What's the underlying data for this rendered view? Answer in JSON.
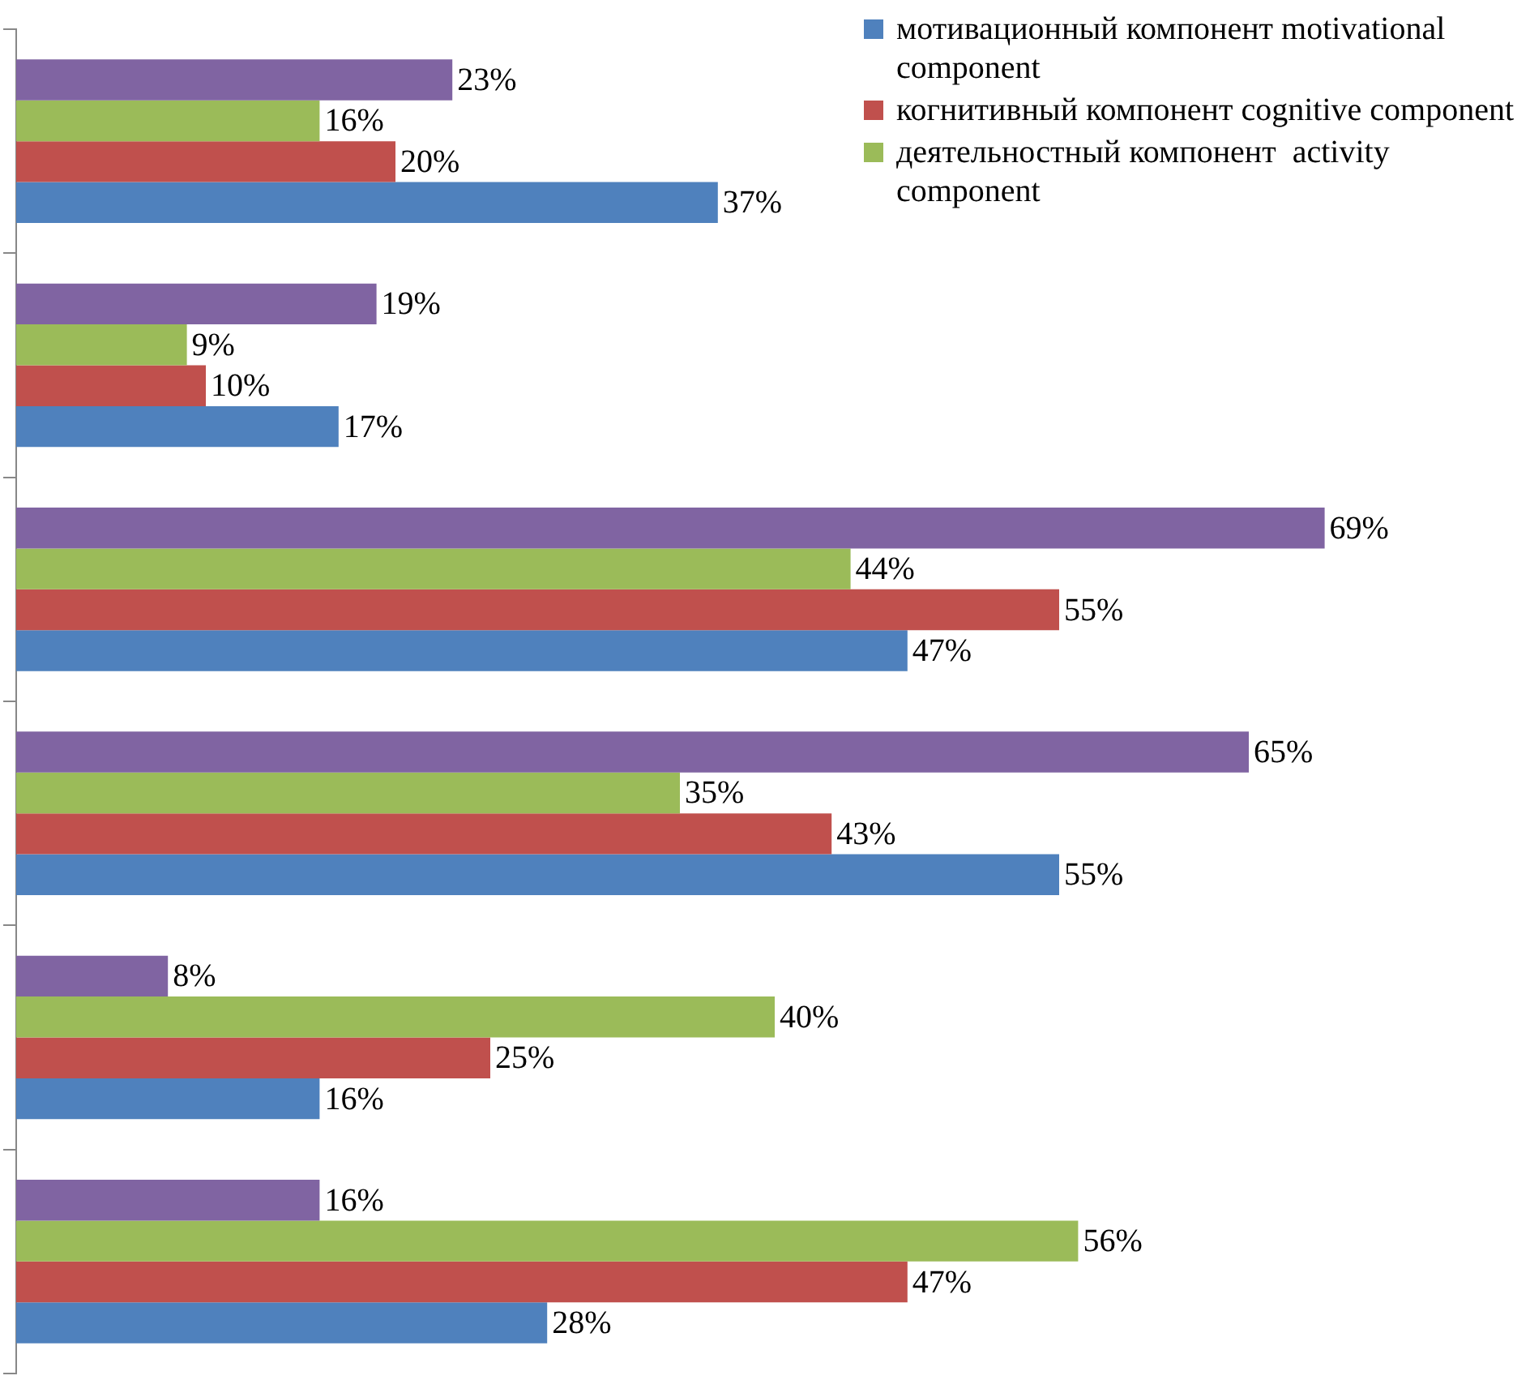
{
  "chart_data": {
    "type": "bar",
    "orientation": "horizontal",
    "categories": [
      null,
      null,
      null,
      null,
      null,
      null
    ],
    "series": [
      {
        "name": "мотивационный компонент motivational component",
        "color": "#4f81bd",
        "values": [
          37,
          17,
          47,
          55,
          16,
          28
        ],
        "value_labels": [
          "37%",
          "17%",
          "47%",
          "55%",
          "16%",
          "28%"
        ]
      },
      {
        "name": "когнитивный компонент cognitive component",
        "color": "#c0504d",
        "values": [
          20,
          10,
          55,
          43,
          25,
          47
        ],
        "value_labels": [
          "20%",
          "10%",
          "55%",
          "43%",
          "25%",
          "47%"
        ]
      },
      {
        "name": "деятельностный компонент  activity component",
        "color": "#9bbb59",
        "values": [
          16,
          9,
          44,
          35,
          40,
          56
        ],
        "value_labels": [
          "16%",
          "9%",
          "44%",
          "35%",
          "40%",
          "56%"
        ]
      },
      {
        "color": "#8064a2",
        "values": [
          23,
          19,
          69,
          65,
          8,
          16
        ],
        "value_labels": [
          "23%",
          "19%",
          "69%",
          "65%",
          "8%",
          "16%"
        ]
      }
    ],
    "grid": false,
    "legend": "top right"
  }
}
